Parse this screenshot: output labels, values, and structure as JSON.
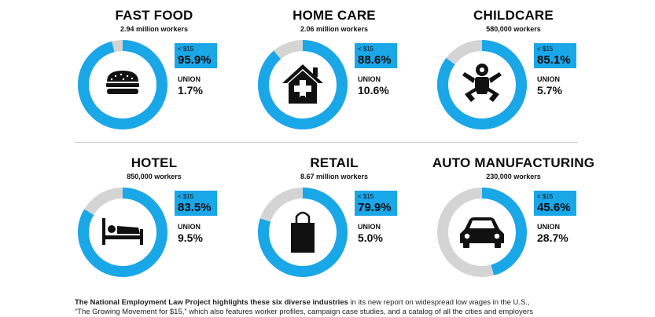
{
  "chart_data": [
    {
      "type": "pie",
      "title": "FAST FOOD",
      "subtitle": "2.94 million workers",
      "icon": "burger-icon",
      "below_15_label": "< $15",
      "below_15": "95.9%",
      "below_15_value": 95.9,
      "union_label": "UNION",
      "union": "1.7%",
      "union_value": 1.7
    },
    {
      "type": "pie",
      "title": "HOME CARE",
      "subtitle": "2.06 million workers",
      "icon": "house-icon",
      "below_15_label": "< $15",
      "below_15": "88.6%",
      "below_15_value": 88.6,
      "union_label": "UNION",
      "union": "10.6%",
      "union_value": 10.6
    },
    {
      "type": "pie",
      "title": "CHILDCARE",
      "subtitle": "580,000 workers",
      "icon": "baby-icon",
      "below_15_label": "< $15",
      "below_15": "85.1%",
      "below_15_value": 85.1,
      "union_label": "UNION",
      "union": "5.7%",
      "union_value": 5.7
    },
    {
      "type": "pie",
      "title": "HOTEL",
      "subtitle": "850,000 workers",
      "icon": "bed-icon",
      "below_15_label": "< $15",
      "below_15": "83.5%",
      "below_15_value": 83.5,
      "union_label": "UNION",
      "union": "9.5%",
      "union_value": 9.5
    },
    {
      "type": "pie",
      "title": "RETAIL",
      "subtitle": "8.67 million workers",
      "icon": "shopping-bag-icon",
      "below_15_label": "< $15",
      "below_15": "79.9%",
      "below_15_value": 79.9,
      "union_label": "UNION",
      "union": "5.0%",
      "union_value": 5.0
    },
    {
      "type": "pie",
      "title": "AUTO MANUFACTURING",
      "subtitle": "230,000 workers",
      "icon": "car-icon",
      "below_15_label": "< $15",
      "below_15": "45.6%",
      "below_15_value": 45.6,
      "union_label": "UNION",
      "union": "28.7%",
      "union_value": 28.7
    }
  ],
  "colors": {
    "accent": "#1aa7e8",
    "remainder": "#d4d4d4"
  },
  "footer": {
    "bold": "The National Employment Law Project highlights these six diverse industries",
    "line1_rest": " in its new report on widespread low wages in the U.S.,",
    "line2": "“The Growing Movement for $15,” which also features worker profiles, campaign case studies, and a catalog of all the cities and employers"
  }
}
